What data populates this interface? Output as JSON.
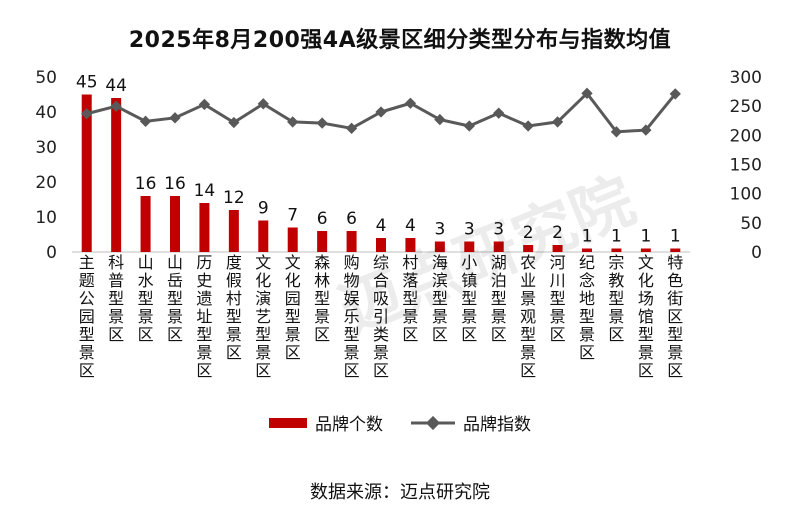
{
  "chart_data": {
    "type": "bar+line",
    "title": "2025年8月200强4A级景区细分类型分布与指数均值",
    "categories": [
      "主题公园型景区",
      "科普型景区",
      "山水型景区",
      "山岳型景区",
      "历史遗址型景区",
      "度假村型景区",
      "文化演艺型景区",
      "文化园型景区",
      "森林型景区",
      "购物娱乐型景区",
      "综合吸引类景区",
      "村落型景区",
      "海滨型景区",
      "小镇型景区",
      "湖泊型景区",
      "农业景观型景区",
      "河川型景区",
      "纪念地型景区",
      "宗教型景区",
      "文化场馆型景区",
      "特色街区型景区"
    ],
    "series": [
      {
        "name": "品牌个数",
        "type": "bar",
        "axis": "left",
        "color": "#c00000",
        "values": [
          45,
          44,
          16,
          16,
          14,
          12,
          9,
          7,
          6,
          6,
          4,
          4,
          3,
          3,
          3,
          2,
          2,
          1,
          1,
          1,
          1
        ]
      },
      {
        "name": "品牌指数",
        "type": "line",
        "axis": "right",
        "color": "#595959",
        "values": [
          237,
          250,
          224,
          230,
          253,
          222,
          254,
          223,
          221,
          212,
          240,
          255,
          227,
          216,
          238,
          216,
          223,
          272,
          206,
          209,
          271
        ]
      }
    ],
    "y_left": {
      "min": 0,
      "max": 50,
      "ticks": [
        0,
        10,
        20,
        30,
        40,
        50
      ]
    },
    "y_right": {
      "min": 0,
      "max": 300,
      "ticks": [
        0,
        50,
        100,
        150,
        200,
        250,
        300
      ]
    },
    "legend_position": "bottom",
    "grid": false
  },
  "source": "数据来源：迈点研究院",
  "watermark": "迈点研究院"
}
